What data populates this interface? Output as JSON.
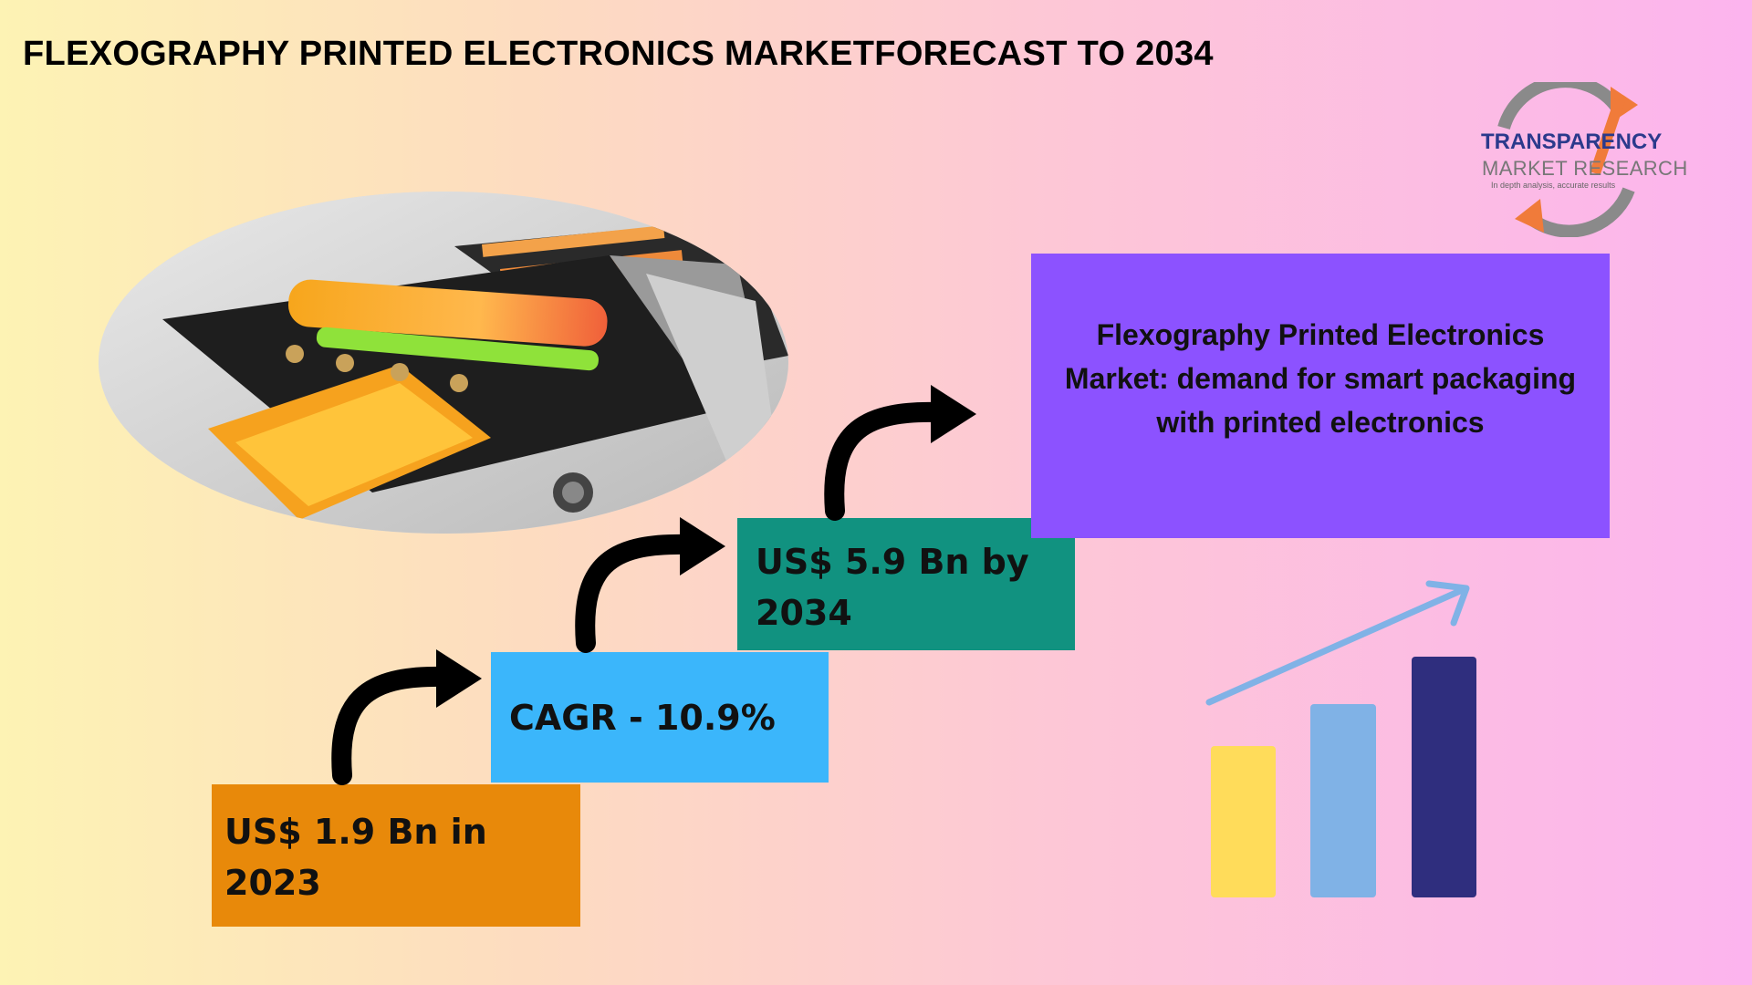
{
  "title": "FLEXOGRAPHY PRINTED ELECTRONICS MARKETFORECAST TO 2034",
  "logo": {
    "line1": "TRANSPARENCY",
    "line2": "MARKET RESEARCH",
    "tagline": "In depth analysis, accurate results"
  },
  "steps": {
    "value_2023": [
      "US$ 1.9 Bn in",
      "2023"
    ],
    "cagr": "CAGR - 10.9%",
    "value_2034": [
      "US$ 5.9 Bn by",
      "2034"
    ]
  },
  "market_box": {
    "lines": [
      "Flexography Printed Electronics",
      "Market: demand for smart packaging",
      "with printed electronics"
    ]
  },
  "colors": {
    "box_2023": "#e8890a",
    "box_cagr": "#3bb6fb",
    "box_2034": "#119280",
    "box_market": "#8c52ff",
    "bar_yellow": "#ffdc5a",
    "bar_light_blue": "#80b2e6",
    "bar_navy": "#2f2e7e"
  },
  "icons": {
    "step_arrows": "curved-arrow-icon",
    "growth_chart": "bar-chart-growth-icon",
    "logo_mark": "circular-arrow-logo-icon"
  }
}
